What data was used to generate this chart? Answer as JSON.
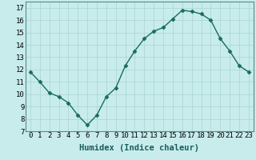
{
  "x": [
    0,
    1,
    2,
    3,
    4,
    5,
    6,
    7,
    8,
    9,
    10,
    11,
    12,
    13,
    14,
    15,
    16,
    17,
    18,
    19,
    20,
    21,
    22,
    23
  ],
  "y": [
    11.8,
    11.0,
    10.1,
    9.8,
    9.3,
    8.3,
    7.5,
    8.3,
    9.8,
    10.5,
    12.3,
    13.5,
    14.5,
    15.1,
    15.4,
    16.1,
    16.8,
    16.7,
    16.5,
    16.0,
    14.5,
    13.5,
    12.3,
    11.8
  ],
  "line_color": "#1a6b5e",
  "marker": "D",
  "marker_size": 2.5,
  "bg_color": "#c8ecec",
  "grid_color": "#aed6d6",
  "xlabel": "Humidex (Indice chaleur)",
  "xlim": [
    -0.5,
    23.5
  ],
  "ylim": [
    7,
    17.5
  ],
  "yticks": [
    7,
    8,
    9,
    10,
    11,
    12,
    13,
    14,
    15,
    16,
    17
  ],
  "xticks": [
    0,
    1,
    2,
    3,
    4,
    5,
    6,
    7,
    8,
    9,
    10,
    11,
    12,
    13,
    14,
    15,
    16,
    17,
    18,
    19,
    20,
    21,
    22,
    23
  ],
  "tick_fontsize": 6.5,
  "xlabel_fontsize": 7.5,
  "line_width": 1.0
}
